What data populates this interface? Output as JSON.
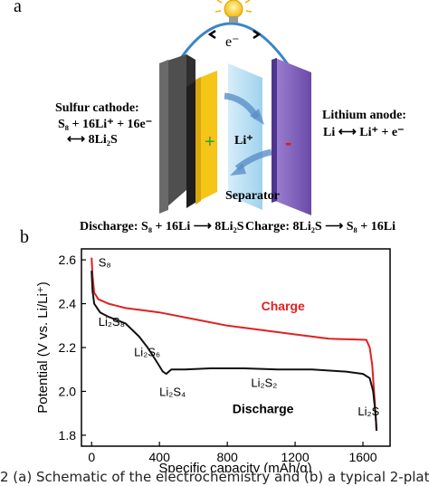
{
  "panel_a": {
    "letter": "a",
    "electron_label": "e⁻",
    "cathode_title": "Sulfur cathode:",
    "cathode_reaction": "S₈ + 16Li⁺ + 16e⁻",
    "cathode_product": "⟷ 8Li₂S",
    "anode_title": "Lithium anode:",
    "anode_reaction": "Li ⟷ Li⁺ + e⁻",
    "ion_label": "Li⁺",
    "separator_label": "Separator",
    "plus_sign": "+",
    "minus_sign": "-",
    "discharge_eq": "Discharge: S₈ + 16Li ⟶ 8Li₂S",
    "charge_eq": "Charge: 8Li₂S ⟶ S₈ + 16Li",
    "icons": [
      "light-bulb-icon",
      "arrow-left-icon",
      "arrow-right-icon"
    ],
    "colors": {
      "cathode": "#f5c518",
      "collector": "#4a4a4a",
      "separator": "#a9d8f0",
      "anode": "#7a5bb5",
      "plus": "#2e9e3a",
      "minus": "#d62020",
      "wire": "#3a86c8"
    }
  },
  "panel_b": {
    "letter": "b",
    "chart_data": {
      "type": "line",
      "xlabel": "Specific capacity (mAh/g)",
      "ylabel": "Potential (V vs. Li/Li⁺)",
      "xlim": [
        -60,
        1760
      ],
      "ylim": [
        1.75,
        2.65
      ],
      "xticks": [
        0,
        400,
        800,
        1200,
        1600
      ],
      "yticks": [
        1.8,
        2.0,
        2.2,
        2.4,
        2.6
      ],
      "grid": false,
      "series": [
        {
          "name": "Charge",
          "color": "#e02020",
          "x": [
            1680,
            1670,
            1655,
            1640,
            1620,
            1400,
            1200,
            1000,
            800,
            600,
            400,
            300,
            200,
            100,
            40,
            15,
            5,
            0
          ],
          "y": [
            1.82,
            1.95,
            2.12,
            2.2,
            2.235,
            2.24,
            2.26,
            2.28,
            2.3,
            2.33,
            2.36,
            2.37,
            2.38,
            2.4,
            2.42,
            2.45,
            2.53,
            2.61
          ]
        },
        {
          "name": "Discharge",
          "color": "#111111",
          "x": [
            0,
            5,
            15,
            50,
            100,
            200,
            280,
            330,
            380,
            420,
            440,
            470,
            550,
            700,
            900,
            1100,
            1300,
            1500,
            1600,
            1640,
            1660,
            1670,
            1678,
            1680
          ],
          "y": [
            2.55,
            2.46,
            2.4,
            2.36,
            2.34,
            2.31,
            2.25,
            2.2,
            2.14,
            2.09,
            2.08,
            2.1,
            2.1,
            2.105,
            2.105,
            2.1,
            2.1,
            2.09,
            2.08,
            2.06,
            2.0,
            1.93,
            1.86,
            1.82
          ]
        }
      ],
      "annotations": [
        {
          "text": "S₈",
          "x": 40,
          "y": 2.57
        },
        {
          "text": "Li₂S₈",
          "x": 40,
          "y": 2.3
        },
        {
          "text": "Li₂S₆",
          "x": 250,
          "y": 2.16
        },
        {
          "text": "Li₂S₄",
          "x": 400,
          "y": 1.98
        },
        {
          "text": "Li₂S₂",
          "x": 940,
          "y": 2.02
        },
        {
          "text": "Li₂S",
          "x": 1570,
          "y": 1.89
        }
      ],
      "series_labels": [
        {
          "text": "Charge",
          "x": 1000,
          "y": 2.37
        },
        {
          "text": "Discharge",
          "x": 830,
          "y": 1.9
        }
      ]
    }
  },
  "caption": "2   (a) Schematic of the electrochemistry and (b) a typical 2-plat"
}
